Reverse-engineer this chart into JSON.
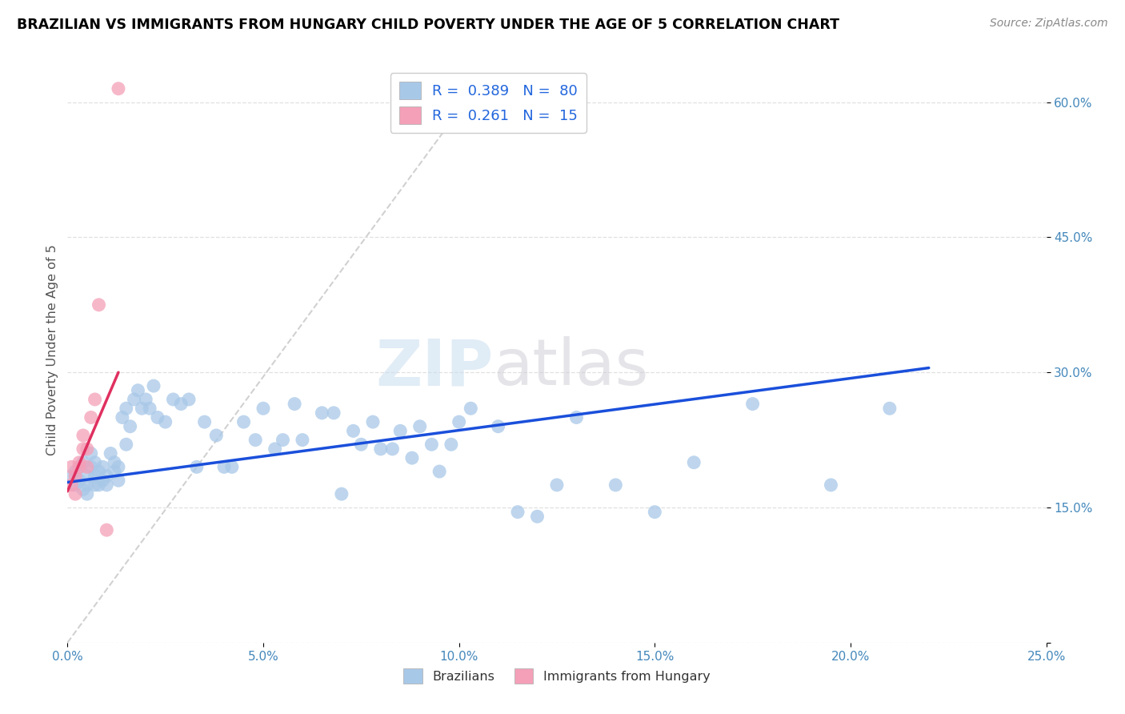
{
  "title": "BRAZILIAN VS IMMIGRANTS FROM HUNGARY CHILD POVERTY UNDER THE AGE OF 5 CORRELATION CHART",
  "source": "Source: ZipAtlas.com",
  "ylabel": "Child Poverty Under the Age of 5",
  "xlim": [
    0.0,
    0.25
  ],
  "ylim": [
    0.0,
    0.65
  ],
  "xtick_vals": [
    0.0,
    0.05,
    0.1,
    0.15,
    0.2,
    0.25
  ],
  "ytick_vals": [
    0.0,
    0.15,
    0.3,
    0.45,
    0.6
  ],
  "ytick_labels": [
    "",
    "15.0%",
    "30.0%",
    "45.0%",
    "60.0%"
  ],
  "brazilian_color": "#a8c8e8",
  "hungarian_color": "#f4a0b8",
  "trend_blue_color": "#1a4fdb",
  "trend_pink_color": "#e03060",
  "grid_color": "#dddddd",
  "watermark_zip_color": "#c8ddf0",
  "watermark_atlas_color": "#d0d0d8",
  "legend_color": "#2266dd",
  "R_brazilian": 0.389,
  "N_brazilian": 80,
  "R_hungarian": 0.261,
  "N_hungarian": 15,
  "braz_x": [
    0.001,
    0.002,
    0.002,
    0.003,
    0.003,
    0.004,
    0.004,
    0.005,
    0.005,
    0.005,
    0.006,
    0.006,
    0.007,
    0.007,
    0.007,
    0.008,
    0.008,
    0.009,
    0.009,
    0.01,
    0.01,
    0.011,
    0.012,
    0.012,
    0.013,
    0.013,
    0.014,
    0.015,
    0.015,
    0.016,
    0.017,
    0.018,
    0.019,
    0.02,
    0.021,
    0.022,
    0.023,
    0.025,
    0.027,
    0.029,
    0.031,
    0.033,
    0.035,
    0.038,
    0.04,
    0.042,
    0.045,
    0.048,
    0.05,
    0.053,
    0.055,
    0.058,
    0.06,
    0.065,
    0.068,
    0.07,
    0.073,
    0.075,
    0.078,
    0.08,
    0.083,
    0.085,
    0.088,
    0.09,
    0.093,
    0.095,
    0.098,
    0.1,
    0.103,
    0.11,
    0.115,
    0.12,
    0.125,
    0.13,
    0.14,
    0.15,
    0.16,
    0.175,
    0.195,
    0.21
  ],
  "braz_y": [
    0.185,
    0.19,
    0.175,
    0.18,
    0.195,
    0.17,
    0.2,
    0.185,
    0.175,
    0.165,
    0.195,
    0.21,
    0.175,
    0.185,
    0.2,
    0.175,
    0.19,
    0.18,
    0.195,
    0.175,
    0.185,
    0.21,
    0.19,
    0.2,
    0.195,
    0.18,
    0.25,
    0.22,
    0.26,
    0.24,
    0.27,
    0.28,
    0.26,
    0.27,
    0.26,
    0.285,
    0.25,
    0.245,
    0.27,
    0.265,
    0.27,
    0.195,
    0.245,
    0.23,
    0.195,
    0.195,
    0.245,
    0.225,
    0.26,
    0.215,
    0.225,
    0.265,
    0.225,
    0.255,
    0.255,
    0.165,
    0.235,
    0.22,
    0.245,
    0.215,
    0.215,
    0.235,
    0.205,
    0.24,
    0.22,
    0.19,
    0.22,
    0.245,
    0.26,
    0.24,
    0.145,
    0.14,
    0.175,
    0.25,
    0.175,
    0.145,
    0.2,
    0.265,
    0.175,
    0.26
  ],
  "hung_x": [
    0.001,
    0.001,
    0.002,
    0.002,
    0.003,
    0.003,
    0.004,
    0.004,
    0.005,
    0.005,
    0.006,
    0.007,
    0.008,
    0.01,
    0.013
  ],
  "hung_y": [
    0.175,
    0.195,
    0.165,
    0.185,
    0.195,
    0.2,
    0.215,
    0.23,
    0.215,
    0.195,
    0.25,
    0.27,
    0.375,
    0.125,
    0.615
  ],
  "gray_line_x": [
    0.0,
    0.105
  ],
  "gray_line_y": [
    0.0,
    0.62
  ],
  "blue_line_x": [
    0.0,
    0.22
  ],
  "blue_line_y": [
    0.178,
    0.305
  ],
  "pink_line_x": [
    0.0,
    0.013
  ],
  "pink_line_y": [
    0.168,
    0.3
  ]
}
